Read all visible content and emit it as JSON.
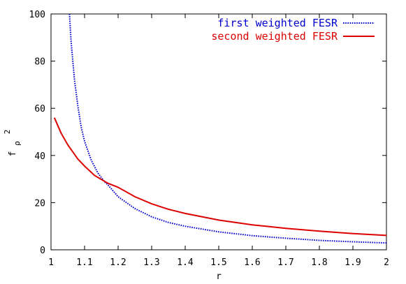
{
  "chart_data": {
    "type": "line",
    "xlabel": "r",
    "ylabel": "f",
    "ylabel_sub": "ρ",
    "ylabel_sup": "2",
    "xlim": [
      1,
      2
    ],
    "ylim": [
      0,
      100
    ],
    "xticks": [
      1,
      1.1,
      1.2,
      1.3,
      1.4,
      1.5,
      1.6,
      1.7,
      1.8,
      1.9,
      2
    ],
    "xtick_labels": [
      "1",
      "1.1",
      "1.2",
      "1.3",
      "1.4",
      "1.5",
      "1.6",
      "1.7",
      "1.8",
      "1.9",
      "2"
    ],
    "yticks": [
      0,
      20,
      40,
      60,
      80,
      100
    ],
    "ytick_labels": [
      "0",
      "20",
      "40",
      "60",
      "80",
      "100"
    ],
    "grid": false,
    "legend_position": "top-right",
    "series": [
      {
        "name": "first weighted FESR",
        "color": "#0000cc",
        "style": "dotted",
        "x": [
          1.055,
          1.06,
          1.07,
          1.08,
          1.09,
          1.1,
          1.12,
          1.14,
          1.16,
          1.17,
          1.2,
          1.25,
          1.3,
          1.35,
          1.4,
          1.5,
          1.6,
          1.7,
          1.8,
          1.9,
          2.0
        ],
        "y": [
          100,
          88,
          72,
          61,
          52,
          46,
          38,
          32.5,
          28.8,
          27.5,
          22.5,
          17.5,
          14,
          11.6,
          10,
          7.6,
          6.0,
          4.9,
          4.0,
          3.4,
          2.9
        ]
      },
      {
        "name": "second weighted FESR",
        "color": "#dd0000",
        "style": "solid",
        "x": [
          1.01,
          1.03,
          1.05,
          1.08,
          1.1,
          1.13,
          1.17,
          1.2,
          1.25,
          1.3,
          1.35,
          1.4,
          1.5,
          1.6,
          1.7,
          1.8,
          1.9,
          2.0
        ],
        "y": [
          56,
          49.5,
          44.5,
          38.5,
          35.5,
          31.5,
          28.2,
          26.5,
          22.5,
          19.5,
          17.2,
          15.4,
          12.6,
          10.6,
          9.1,
          7.9,
          6.9,
          6.1
        ]
      }
    ]
  }
}
